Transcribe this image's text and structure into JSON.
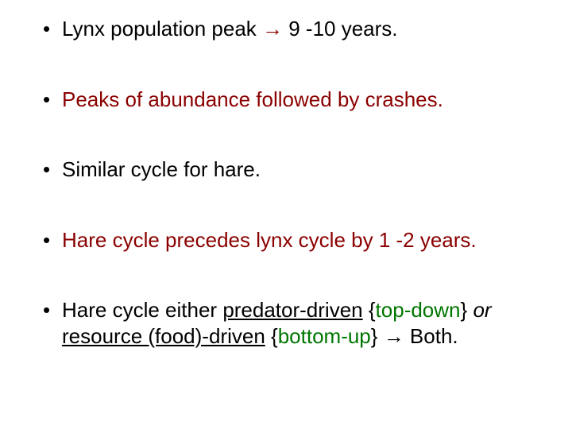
{
  "colors": {
    "text_default": "#000000",
    "text_emphasis": "#8b0000",
    "text_term": "#007600",
    "background": "#ffffff"
  },
  "typography": {
    "font_family": "Arial",
    "font_size_pt": 20,
    "line_height": 1.25
  },
  "bullets": {
    "b1": {
      "p1": "Lynx population peak ",
      "arrow": "→",
      "p2": " 9 -10 years."
    },
    "b2": {
      "text": "Peaks of abundance followed by crashes."
    },
    "b3": {
      "text": "Similar cycle for hare."
    },
    "b4": {
      "text": "Hare cycle precedes lynx cycle by 1 -2 years."
    },
    "b5": {
      "p1": "Hare cycle either ",
      "u1": "predator-driven",
      "sp1": " {",
      "g1": "top-down",
      "sp2": "} ",
      "or": "or",
      "sp3": " ",
      "u2": "resource (food)-driven",
      "sp4": " {",
      "g2": "bottom-up",
      "sp5": "} ",
      "arrow": "→",
      "p2": " Both."
    }
  }
}
